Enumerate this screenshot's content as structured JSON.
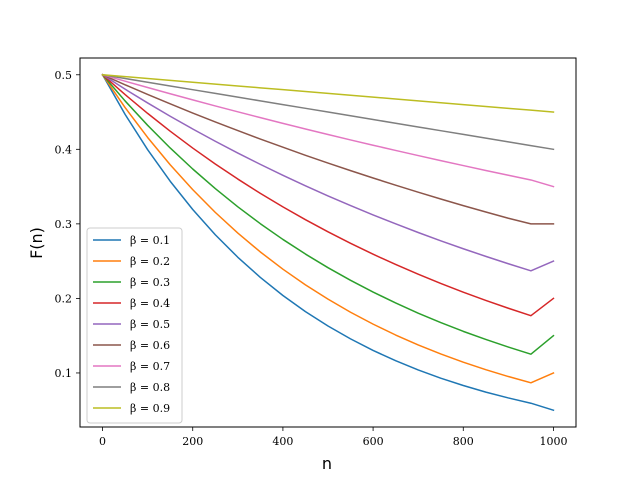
{
  "chart_data": {
    "type": "line",
    "title": "",
    "xlabel": "n",
    "ylabel": "F(n)",
    "xlim": [
      -50,
      1050
    ],
    "ylim": [
      0.0275,
      0.5225
    ],
    "xticks": [
      0,
      200,
      400,
      600,
      800,
      1000
    ],
    "xtick_labels": [
      "0",
      "200",
      "400",
      "600",
      "800",
      "1000"
    ],
    "yticks": [
      0.1,
      0.2,
      0.3,
      0.4,
      0.5
    ],
    "ytick_labels": [
      "0.1",
      "0.2",
      "0.3",
      "0.4",
      "0.5"
    ],
    "grid": false,
    "legend_position": "lower-left",
    "x": [
      0,
      50,
      100,
      150,
      200,
      250,
      300,
      350,
      400,
      450,
      500,
      550,
      600,
      650,
      700,
      750,
      800,
      850,
      900,
      950,
      1000
    ],
    "series": [
      {
        "name": "β = 0.1",
        "color": "#1f77b4",
        "values": [
          0.5,
          0.4469,
          0.3995,
          0.3572,
          0.3193,
          0.2854,
          0.2552,
          0.2281,
          0.2039,
          0.1823,
          0.163,
          0.1457,
          0.1302,
          0.1164,
          0.1041,
          0.093,
          0.0832,
          0.0743,
          0.0665,
          0.0594,
          0.05
        ]
      },
      {
        "name": "β = 0.2",
        "color": "#ff7f0e",
        "values": [
          0.5,
          0.456,
          0.4159,
          0.3793,
          0.3459,
          0.3154,
          0.2877,
          0.2623,
          0.2392,
          0.2182,
          0.199,
          0.1814,
          0.1655,
          0.1509,
          0.1376,
          0.1255,
          0.1145,
          0.1044,
          0.0952,
          0.0868,
          0.1
        ]
      },
      {
        "name": "β = 0.3",
        "color": "#2ca02c",
        "values": [
          0.5,
          0.4649,
          0.4322,
          0.4018,
          0.3736,
          0.3473,
          0.3229,
          0.3002,
          0.2791,
          0.2595,
          0.2412,
          0.2243,
          0.2085,
          0.1939,
          0.1802,
          0.1676,
          0.1558,
          0.1449,
          0.1347,
          0.1252,
          0.15
        ]
      },
      {
        "name": "β = 0.4",
        "color": "#d62728",
        "values": [
          0.5,
          0.4734,
          0.4482,
          0.4243,
          0.4017,
          0.3803,
          0.3601,
          0.3409,
          0.3228,
          0.3056,
          0.2893,
          0.2739,
          0.2593,
          0.2455,
          0.2325,
          0.2201,
          0.2084,
          0.1973,
          0.1868,
          0.1768,
          0.2
        ]
      },
      {
        "name": "β = 0.5",
        "color": "#9467bd",
        "values": [
          0.5,
          0.4807,
          0.4622,
          0.4444,
          0.4273,
          0.4108,
          0.395,
          0.3798,
          0.3651,
          0.3511,
          0.3375,
          0.3245,
          0.312,
          0.3,
          0.2884,
          0.2773,
          0.2666,
          0.2564,
          0.2465,
          0.237,
          0.25
        ]
      },
      {
        "name": "β = 0.6",
        "color": "#8c564b",
        "values": [
          0.5,
          0.4866,
          0.4737,
          0.461,
          0.4487,
          0.4368,
          0.4251,
          0.4138,
          0.4028,
          0.392,
          0.3816,
          0.3714,
          0.3615,
          0.3519,
          0.3425,
          0.3334,
          0.3245,
          0.3159,
          0.3075,
          0.3,
          0.3
        ]
      },
      {
        "name": "β = 0.7",
        "color": "#e377c2",
        "values": [
          0.5,
          0.4914,
          0.4829,
          0.4745,
          0.4663,
          0.4582,
          0.4503,
          0.4425,
          0.4348,
          0.4273,
          0.4199,
          0.4126,
          0.4055,
          0.3985,
          0.3916,
          0.3848,
          0.3782,
          0.3716,
          0.3652,
          0.3589,
          0.35
        ]
      },
      {
        "name": "β = 0.8",
        "color": "#7f7f7f",
        "values": [
          0.5,
          0.495,
          0.49,
          0.485,
          0.48,
          0.475,
          0.47,
          0.465,
          0.46,
          0.455,
          0.45,
          0.445,
          0.44,
          0.435,
          0.43,
          0.425,
          0.42,
          0.415,
          0.41,
          0.405,
          0.4
        ]
      },
      {
        "name": "β = 0.9",
        "color": "#bcbd22",
        "values": [
          0.5,
          0.4975,
          0.495,
          0.4925,
          0.49,
          0.4875,
          0.485,
          0.4825,
          0.48,
          0.4775,
          0.475,
          0.4725,
          0.47,
          0.4675,
          0.465,
          0.4625,
          0.46,
          0.4575,
          0.455,
          0.4525,
          0.45
        ]
      }
    ]
  }
}
